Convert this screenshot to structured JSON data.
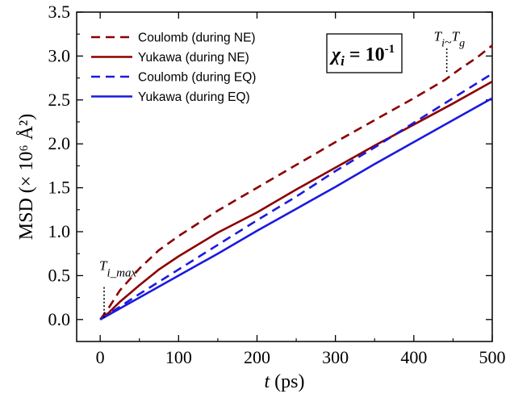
{
  "chart_data": {
    "type": "line",
    "xlabel_var": "t",
    "xlabel_unit": " (ps)",
    "ylabel": "MSD (× 10⁶ Å²)",
    "xlim": [
      -30,
      500
    ],
    "ylim": [
      -0.25,
      3.5
    ],
    "xticks": [
      0,
      100,
      200,
      300,
      400,
      500
    ],
    "xtick_labels": [
      "0",
      "100",
      "200",
      "300",
      "400",
      "500"
    ],
    "yticks": [
      0.0,
      0.5,
      1.0,
      1.5,
      2.0,
      2.5,
      3.0,
      3.5
    ],
    "ytick_labels": [
      "0.0",
      "0.5",
      "1.0",
      "1.5",
      "2.0",
      "2.5",
      "3.0",
      "3.5"
    ],
    "legend_position": "top-left",
    "grid": false,
    "series": [
      {
        "name": "Coulomb (during NE)",
        "color": "#8b0000",
        "dash": "dashed",
        "x": [
          0,
          10,
          25,
          50,
          75,
          100,
          150,
          200,
          250,
          300,
          350,
          400,
          440,
          460,
          480,
          500
        ],
        "y": [
          0.0,
          0.12,
          0.33,
          0.58,
          0.79,
          0.95,
          1.24,
          1.5,
          1.76,
          2.02,
          2.27,
          2.52,
          2.73,
          2.86,
          2.98,
          3.12
        ]
      },
      {
        "name": "Yukawa (during NE)",
        "color": "#8b0000",
        "dash": "solid",
        "x": [
          0,
          10,
          25,
          50,
          75,
          100,
          150,
          200,
          250,
          300,
          350,
          400,
          450,
          500
        ],
        "y": [
          0.0,
          0.07,
          0.2,
          0.39,
          0.57,
          0.72,
          0.99,
          1.22,
          1.48,
          1.73,
          1.98,
          2.22,
          2.46,
          2.71
        ]
      },
      {
        "name": "Coulomb (during EQ)",
        "color": "#1a1adf",
        "dash": "dashed",
        "x": [
          0,
          50,
          100,
          150,
          200,
          250,
          300,
          350,
          400,
          450,
          500
        ],
        "y": [
          0.0,
          0.29,
          0.57,
          0.85,
          1.13,
          1.4,
          1.69,
          1.96,
          2.24,
          2.52,
          2.8
        ]
      },
      {
        "name": "Yukawa (during EQ)",
        "color": "#1a1adf",
        "dash": "solid",
        "x": [
          0,
          50,
          100,
          150,
          200,
          250,
          300,
          350,
          400,
          450,
          500
        ],
        "y": [
          0.0,
          0.25,
          0.5,
          0.75,
          1.01,
          1.26,
          1.51,
          1.77,
          2.02,
          2.27,
          2.52
        ]
      }
    ],
    "annotations": [
      {
        "id": "ti-max",
        "text_main": "T",
        "text_sub": "i_max",
        "x": 5,
        "y": 0.02,
        "line_top_y": 0.38
      },
      {
        "id": "ti-tg",
        "text_main": "T",
        "text_sub1": "i",
        "text_mid": "~",
        "text_main2": "T",
        "text_sub2": "g",
        "x": 442,
        "y": 2.82,
        "line_top_y": 3.1
      }
    ],
    "chi_box": {
      "symbol": "χ",
      "subscript": "i",
      "equals": " = ",
      "base": "10",
      "exponent": "-1"
    }
  }
}
